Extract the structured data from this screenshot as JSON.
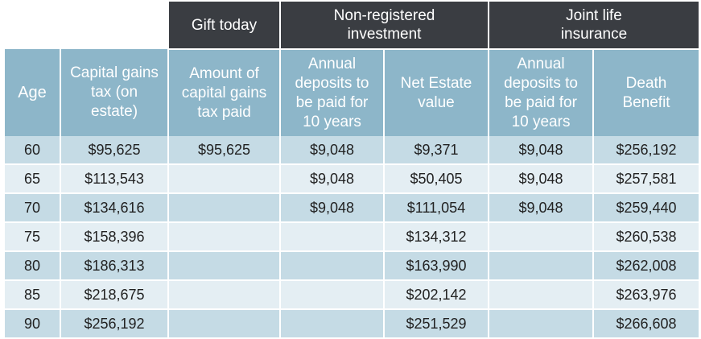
{
  "groups": {
    "gift": "Gift today",
    "nonreg": "Non-registered investment",
    "joint": "Joint life insurance"
  },
  "columns": {
    "age": "Age",
    "cgt": "Capital gains tax (on estate)",
    "amount": "Amount of capital gains tax paid",
    "nonreg_deposits": "Annual deposits to be paid for 10 years",
    "net_estate": "Net Estate value",
    "joint_deposits": "Annual deposits to be paid for 10 years",
    "death_benefit": "Death Benefit"
  },
  "rows": [
    {
      "age": "60",
      "cgt": "$95,625",
      "amount": "$95,625",
      "nonreg_deposits": "$9,048",
      "net_estate": "$9,371",
      "joint_deposits": "$9,048",
      "death_benefit": "$256,192"
    },
    {
      "age": "65",
      "cgt": "$113,543",
      "amount": "",
      "nonreg_deposits": "$9,048",
      "net_estate": "$50,405",
      "joint_deposits": "$9,048",
      "death_benefit": "$257,581"
    },
    {
      "age": "70",
      "cgt": "$134,616",
      "amount": "",
      "nonreg_deposits": "$9,048",
      "net_estate": "$111,054",
      "joint_deposits": "$9,048",
      "death_benefit": "$259,440"
    },
    {
      "age": "75",
      "cgt": "$158,396",
      "amount": "",
      "nonreg_deposits": "",
      "net_estate": "$134,312",
      "joint_deposits": "",
      "death_benefit": "$260,538"
    },
    {
      "age": "80",
      "cgt": "$186,313",
      "amount": "",
      "nonreg_deposits": "",
      "net_estate": "$163,990",
      "joint_deposits": "",
      "death_benefit": "$262,008"
    },
    {
      "age": "85",
      "cgt": "$218,675",
      "amount": "",
      "nonreg_deposits": "",
      "net_estate": "$202,142",
      "joint_deposits": "",
      "death_benefit": "$263,976"
    },
    {
      "age": "90",
      "cgt": "$256,192",
      "amount": "",
      "nonreg_deposits": "",
      "net_estate": "$251,529",
      "joint_deposits": "",
      "death_benefit": "$266,608"
    }
  ],
  "colors": {
    "group_header": "#3a3d42",
    "column_header": "#8db6c9",
    "row_odd": "#c5dbe5",
    "row_even": "#e4eef3"
  }
}
